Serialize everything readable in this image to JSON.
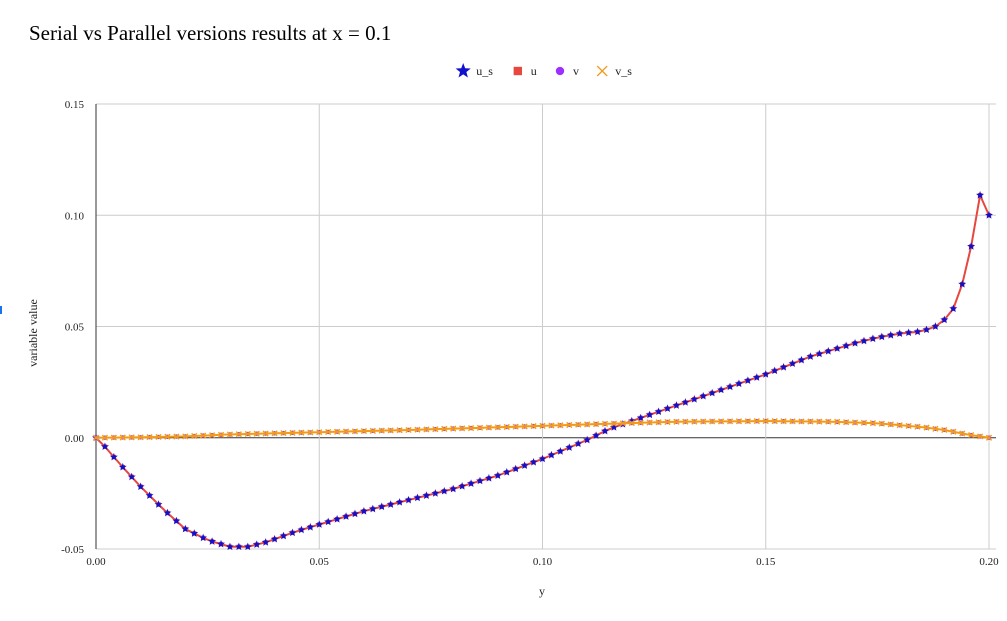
{
  "chart_data": {
    "type": "line",
    "title": "Serial vs Parallel versions results at x = 0.1",
    "xlabel": "y",
    "ylabel": "variable value",
    "xlim": [
      0,
      0.2
    ],
    "ylim": [
      -0.05,
      0.15
    ],
    "x_ticks": [
      "0.00",
      "0.05",
      "0.10",
      "0.15",
      "0.20"
    ],
    "y_ticks": [
      "-0.05",
      "0.00",
      "0.05",
      "0.10",
      "0.15"
    ],
    "grid": true,
    "legend_position": "top-center",
    "u_anchors": [
      [
        0.0,
        0.0
      ],
      [
        0.002,
        -0.004
      ],
      [
        0.005,
        -0.011
      ],
      [
        0.01,
        -0.022
      ],
      [
        0.015,
        -0.032
      ],
      [
        0.02,
        -0.041
      ],
      [
        0.025,
        -0.046
      ],
      [
        0.03,
        -0.049
      ],
      [
        0.034,
        -0.049
      ],
      [
        0.038,
        -0.047
      ],
      [
        0.045,
        -0.042
      ],
      [
        0.05,
        -0.039
      ],
      [
        0.055,
        -0.036
      ],
      [
        0.06,
        -0.033
      ],
      [
        0.07,
        -0.028
      ],
      [
        0.08,
        -0.023
      ],
      [
        0.09,
        -0.017
      ],
      [
        0.1,
        -0.0095
      ],
      [
        0.11,
        -0.001
      ],
      [
        0.115,
        0.004
      ],
      [
        0.12,
        0.0075
      ],
      [
        0.13,
        0.0145
      ],
      [
        0.14,
        0.0215
      ],
      [
        0.15,
        0.0285
      ],
      [
        0.16,
        0.0365
      ],
      [
        0.17,
        0.0425
      ],
      [
        0.175,
        0.045
      ],
      [
        0.18,
        0.0468
      ],
      [
        0.185,
        0.0478
      ],
      [
        0.188,
        0.05
      ],
      [
        0.19,
        0.053
      ],
      [
        0.192,
        0.058
      ],
      [
        0.194,
        0.069
      ],
      [
        0.196,
        0.086
      ],
      [
        0.198,
        0.109
      ],
      [
        0.2,
        0.1
      ]
    ],
    "v_anchors": [
      [
        0.0,
        0.0
      ],
      [
        0.01,
        0.0002
      ],
      [
        0.02,
        0.0006
      ],
      [
        0.03,
        0.0015
      ],
      [
        0.05,
        0.0025
      ],
      [
        0.07,
        0.0035
      ],
      [
        0.09,
        0.0047
      ],
      [
        0.11,
        0.006
      ],
      [
        0.13,
        0.0072
      ],
      [
        0.15,
        0.0075
      ],
      [
        0.165,
        0.0072
      ],
      [
        0.175,
        0.0065
      ],
      [
        0.185,
        0.0048
      ],
      [
        0.19,
        0.0035
      ],
      [
        0.195,
        0.0015
      ],
      [
        0.2,
        0.0
      ]
    ],
    "point_spacing": 0.002,
    "series": [
      {
        "name": "u_s",
        "color": "#1111cc",
        "marker": "star",
        "source": "u",
        "line": false
      },
      {
        "name": "u",
        "color": "#e8473f",
        "marker": "square",
        "source": "u",
        "line": true
      },
      {
        "name": "v",
        "color": "#9b30ff",
        "marker": "circle",
        "source": "v",
        "line": false
      },
      {
        "name": "v_s",
        "color": "#f29a1b",
        "marker": "x",
        "source": "v",
        "line": true
      }
    ]
  }
}
